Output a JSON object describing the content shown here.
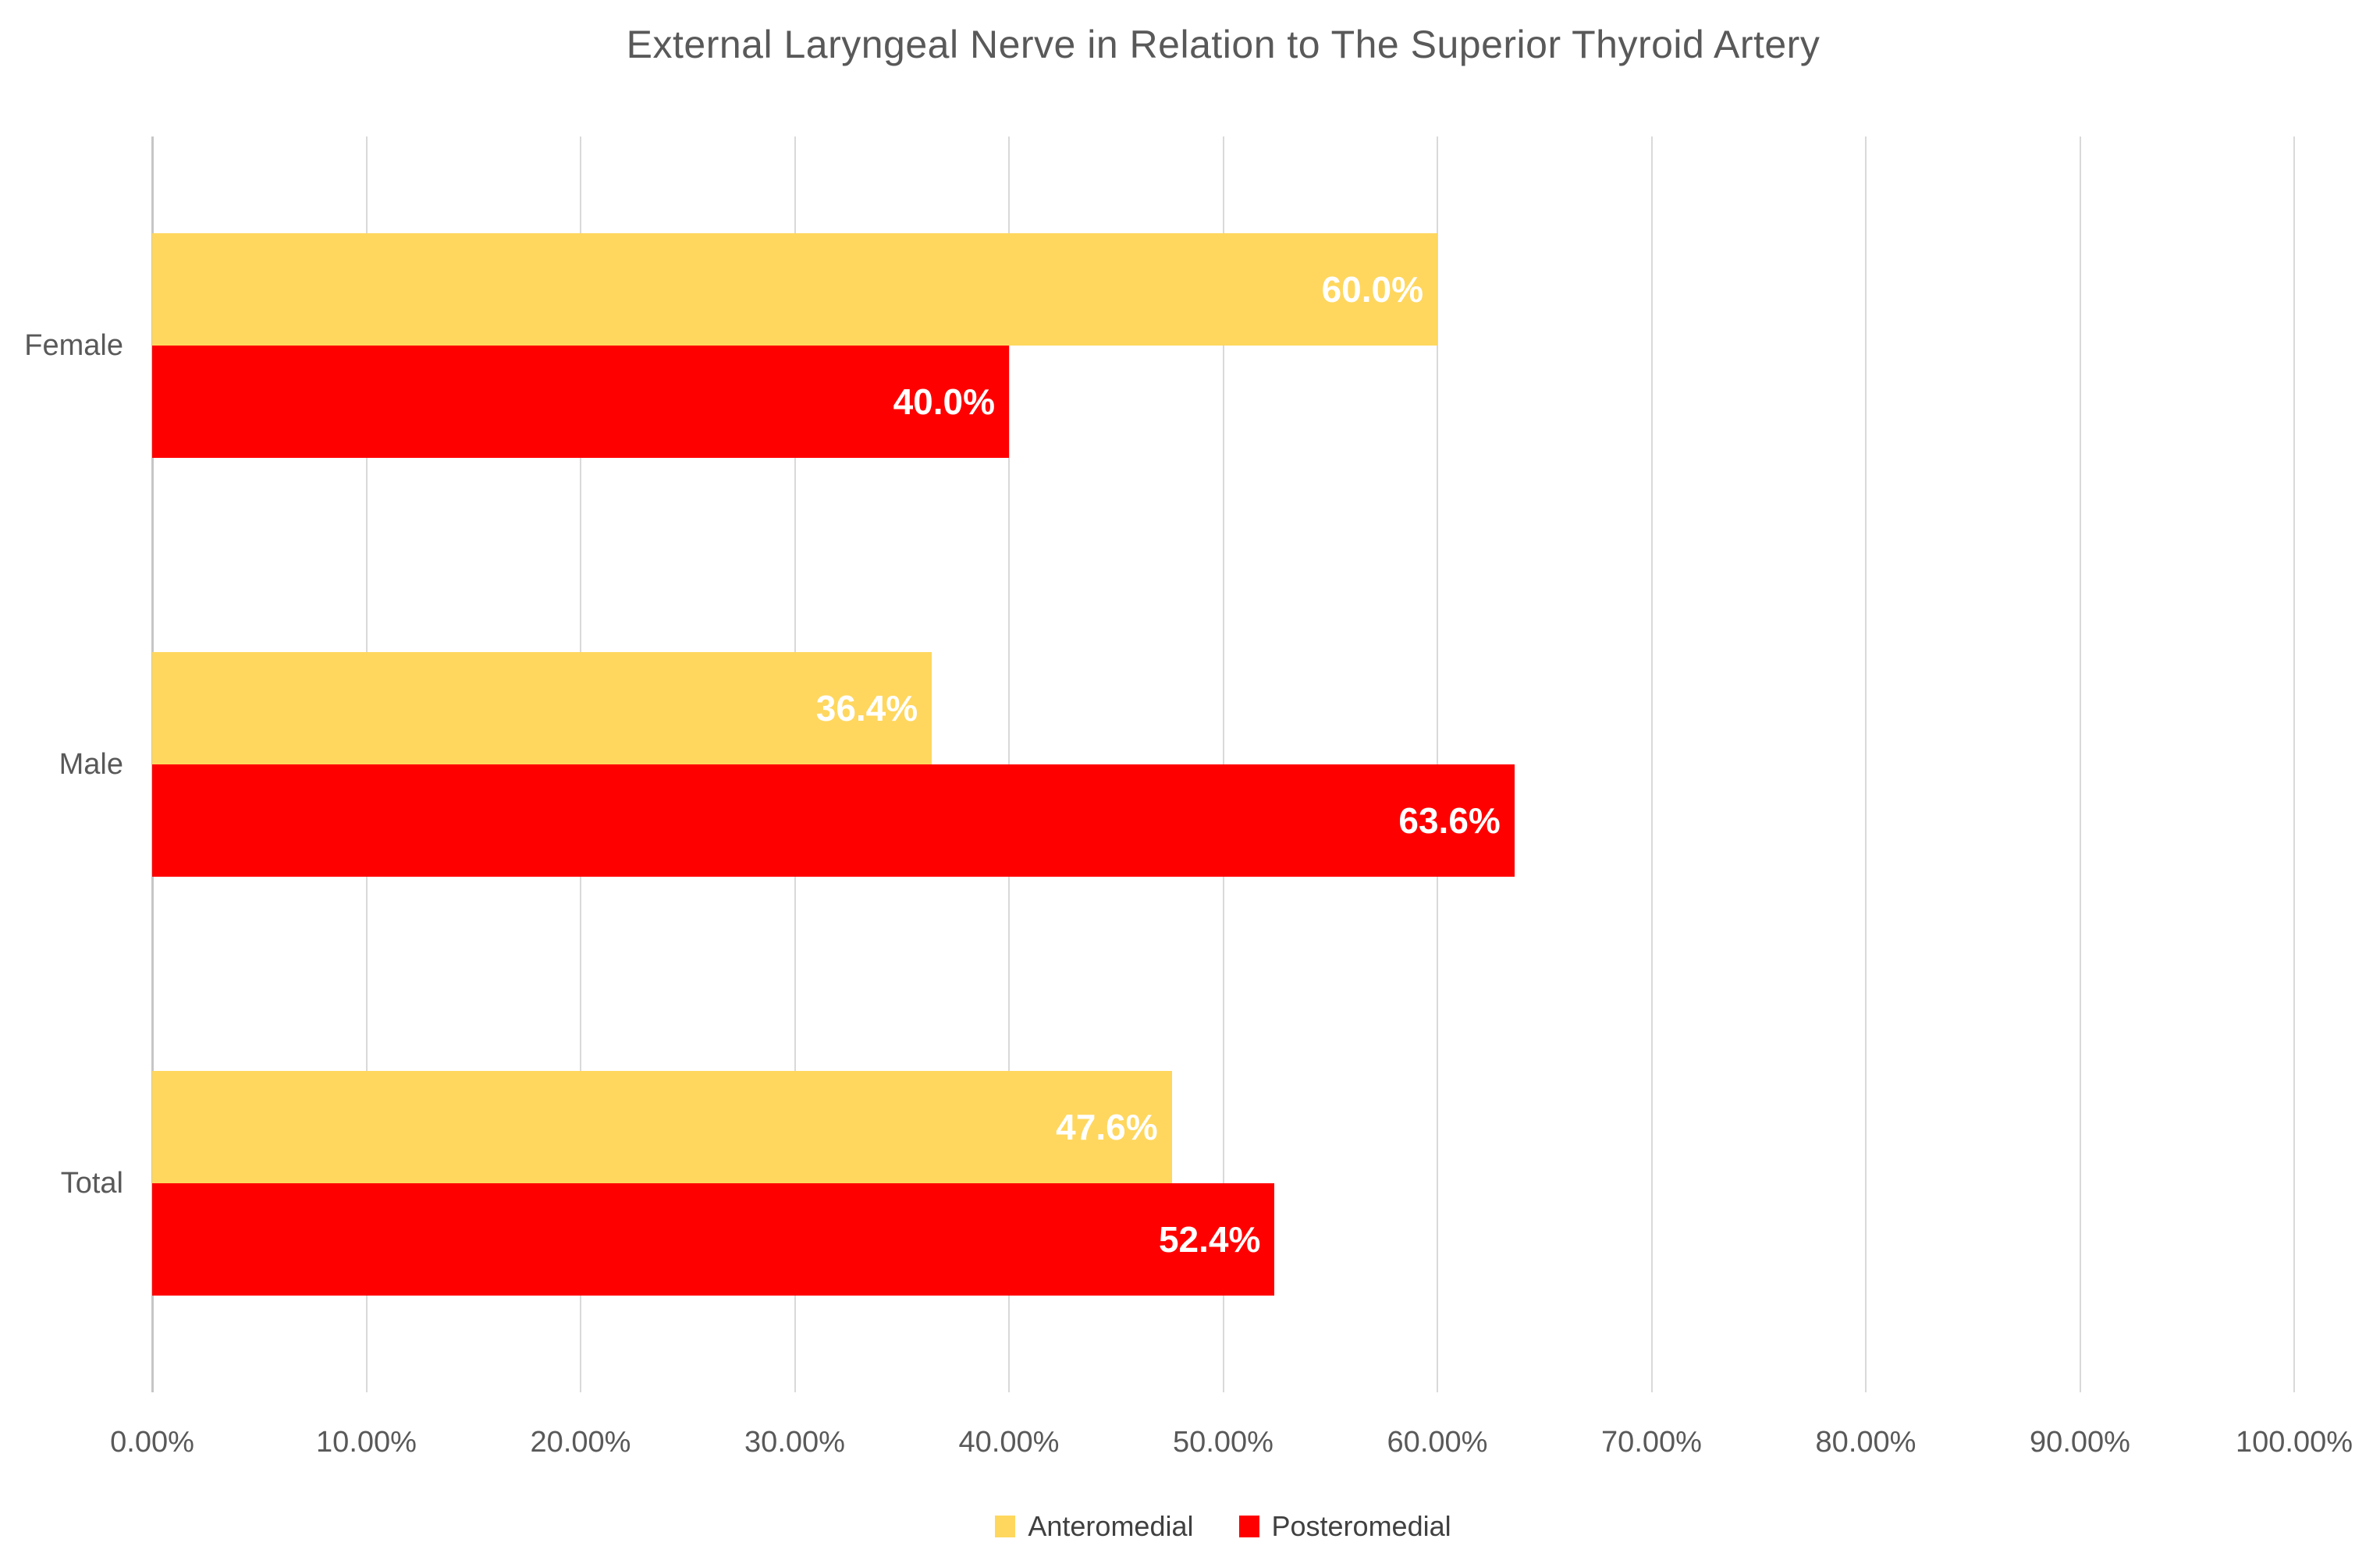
{
  "title": "External Laryngeal Nerve in Relation to The Superior Thyroid Artery",
  "chart_data": {
    "type": "bar",
    "orientation": "horizontal",
    "title": "External Laryngeal Nerve in Relation to The Superior Thyroid Artery",
    "categories": [
      "Female",
      "Male",
      "Total"
    ],
    "series": [
      {
        "name": "Anteromedial",
        "color": "#FFD75E",
        "values": [
          60.0,
          36.4,
          47.6
        ],
        "data_labels": [
          "60.0%",
          "36.4%",
          "47.6%"
        ]
      },
      {
        "name": "Posteromedial",
        "color": "#FF0000",
        "values": [
          40.0,
          63.6,
          52.4
        ],
        "data_labels": [
          "40.0%",
          "63.6%",
          "52.4%"
        ]
      }
    ],
    "xlabel": "",
    "ylabel": "",
    "xlim": [
      0,
      100
    ],
    "x_tick_labels": [
      "0.00%",
      "10.00%",
      "20.00%",
      "30.00%",
      "40.00%",
      "50.00%",
      "60.00%",
      "70.00%",
      "80.00%",
      "90.00%",
      "100.00%"
    ],
    "grid": true,
    "legend_position": "bottom"
  },
  "legend": {
    "items": [
      {
        "label": "Anteromedial",
        "color": "#FFD75E"
      },
      {
        "label": "Posteromedial",
        "color": "#FF0000"
      }
    ]
  },
  "colors": {
    "anteromedial": "#FFD75E",
    "posteromedial": "#FF0000",
    "gridline": "#D9D9D9",
    "axis_line": "#C6C6C6",
    "title_text": "#595959",
    "tick_text": "#595959",
    "category_text": "#595959",
    "legend_text": "#404040",
    "data_label_text": "#FFFFFF",
    "background": "#FFFFFF"
  }
}
